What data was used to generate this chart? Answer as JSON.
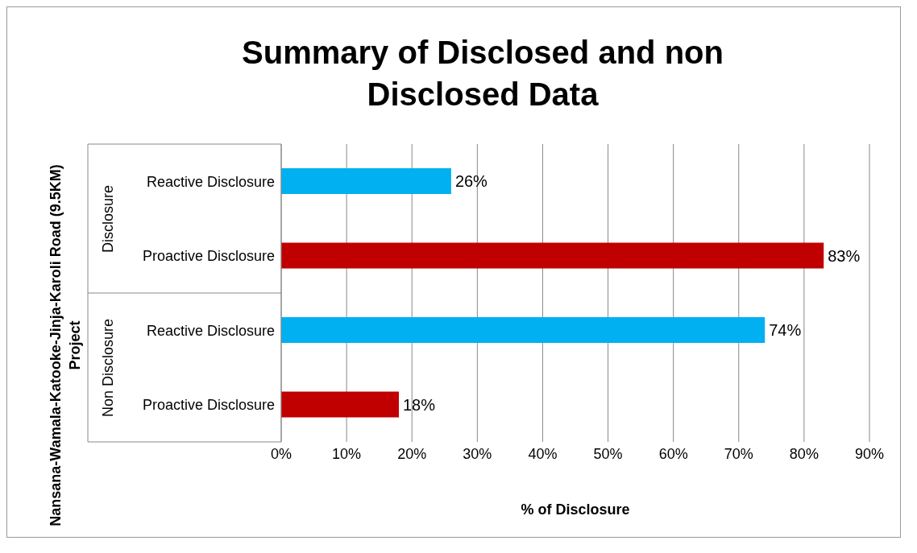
{
  "chart_data": {
    "type": "bar",
    "orientation": "horizontal",
    "title": "Summary of Disclosed and non Disclosed Data",
    "xlabel": "% of Disclosure",
    "ylabel": "Nansana-Wamala-Katooke-Jinja-Karoli Road (9.5KM) Project",
    "categories": [
      "Reactive Disclosure",
      "Proactive Disclosure",
      "Reactive Disclosure",
      "Proactive Disclosure"
    ],
    "values": [
      26,
      83,
      74,
      18
    ],
    "colors": [
      "#00b0f0",
      "#c00000",
      "#00b0f0",
      "#c00000"
    ],
    "value_labels": [
      "26%",
      "83%",
      "74%",
      "18%"
    ],
    "annotations": [
      "Disclosure",
      "Non Disclosure"
    ],
    "xlim": [
      0,
      90
    ],
    "xticks": [
      {
        "value": 0,
        "label": "0%"
      },
      {
        "value": 10,
        "label": "10%"
      },
      {
        "value": 20,
        "label": "20%"
      },
      {
        "value": 30,
        "label": "30%"
      },
      {
        "value": 40,
        "label": "40%"
      },
      {
        "value": 50,
        "label": "50%"
      },
      {
        "value": 60,
        "label": "60%"
      },
      {
        "value": 70,
        "label": "70%"
      },
      {
        "value": 80,
        "label": "80%"
      },
      {
        "value": 90,
        "label": "90%"
      }
    ],
    "grid": "x",
    "legend": false
  }
}
